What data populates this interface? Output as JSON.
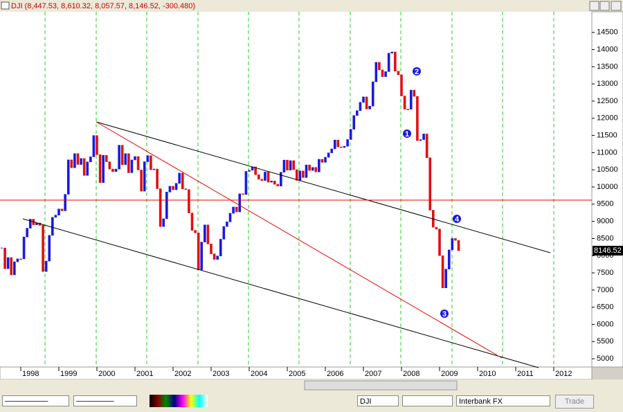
{
  "chart_data": {
    "type": "candlestick",
    "title": "DJI (8,447.53, 8,610.32, 8,057.57, 8,146.52, -300.480)",
    "last_price_label": "8146.52",
    "closes": [
      8223,
      7622,
      7945,
      7442,
      7823,
      7908,
      7907,
      8546,
      8800,
      9063,
      8900,
      8952,
      8883,
      7539,
      7843,
      8592,
      9117,
      9181,
      9359,
      9307,
      9786,
      10789,
      10560,
      10971,
      10655,
      10829,
      10337,
      10730,
      10878,
      11497,
      10941,
      10128,
      10922,
      10734,
      10522,
      10448,
      10522,
      11215,
      10651,
      10971,
      10415,
      10787,
      10887,
      10495,
      9879,
      10735,
      10912,
      10502,
      10523,
      9950,
      8848,
      9075,
      9852,
      10021,
      9920,
      10106,
      10404,
      9946,
      9925,
      9243,
      8737,
      8664,
      7592,
      8397,
      8896,
      8342,
      8054,
      7891,
      7992,
      8480,
      8850,
      8985,
      9234,
      9416,
      9275,
      9801,
      9782,
      10454,
      10488,
      10584,
      10358,
      10226,
      10188,
      10435,
      10140,
      10174,
      10080,
      10027,
      10428,
      10783,
      10490,
      10766,
      10504,
      10193,
      10467,
      10275,
      10641,
      10482,
      10569,
      10440,
      10806,
      10718,
      10865,
      10993,
      11109,
      11367,
      11168,
      11150,
      11186,
      11381,
      11679,
      12081,
      12221,
      12463,
      12622,
      12269,
      12354,
      13063,
      13628,
      13409,
      13212,
      13358,
      13896,
      13930,
      13372,
      13265,
      12650,
      12266,
      12263,
      12820,
      12638,
      11350,
      11378,
      11544,
      10851,
      9325,
      8829,
      8776,
      8001,
      7063,
      7609,
      8168,
      8500,
      8447,
      8146.52
    ],
    "up_color": "#1a1adb",
    "down_color": "#e01010",
    "ylim": [
      4760,
      15100
    ],
    "yticks": [
      5000,
      5500,
      6000,
      6500,
      7000,
      7500,
      8000,
      8500,
      9000,
      9500,
      10000,
      10500,
      11000,
      11500,
      12000,
      12500,
      13000,
      13500,
      14000,
      14500
    ],
    "xticks": [
      1998,
      1999,
      2000,
      2001,
      2002,
      2003,
      2004,
      2005,
      2006,
      2007,
      2008,
      2009,
      2010,
      2011,
      2012
    ],
    "annotations": [
      "1",
      "2",
      "3",
      "4"
    ]
  },
  "toolbar": {
    "symbol": "DJI",
    "broker": "Interbank FX",
    "trade_button": "Trade"
  }
}
